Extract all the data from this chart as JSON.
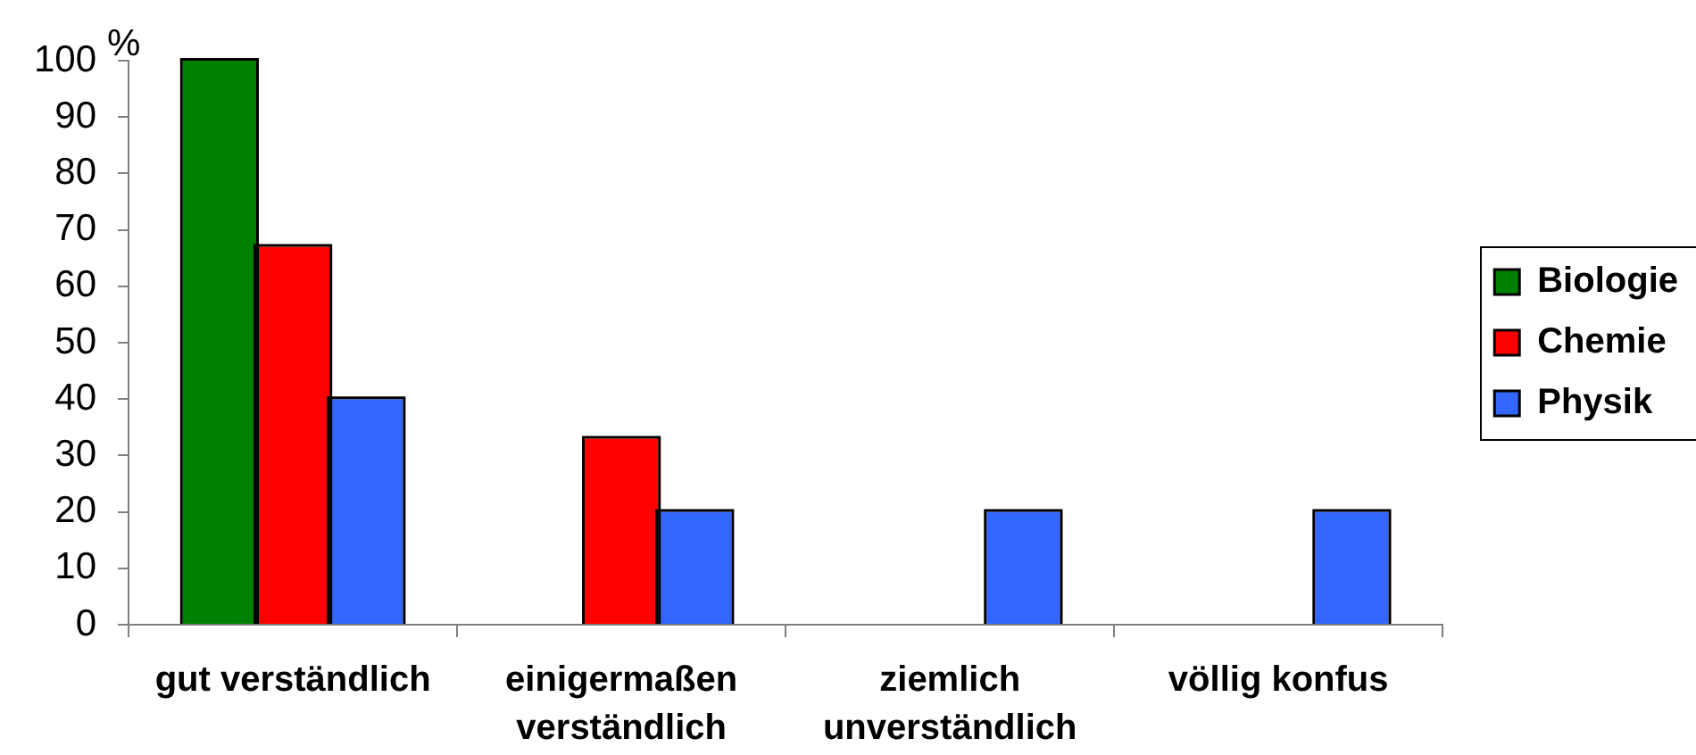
{
  "chart_data": {
    "type": "bar",
    "ylabel": "%",
    "categories": [
      "gut verständlich",
      "einigermaßen verständlich",
      "ziemlich unverständlich",
      "völlig konfus"
    ],
    "series": [
      {
        "name": "Biologie",
        "color": "#008000",
        "values": [
          100,
          0,
          0,
          0
        ]
      },
      {
        "name": "Chemie",
        "color": "#ff0000",
        "values": [
          67,
          33,
          0,
          0
        ]
      },
      {
        "name": "Physik",
        "color": "#3366ff",
        "values": [
          40,
          20,
          20,
          20
        ]
      }
    ],
    "ylim": [
      0,
      100
    ],
    "yticks": [
      0,
      10,
      20,
      30,
      40,
      50,
      60,
      70,
      80,
      90,
      100
    ],
    "grid": false,
    "legend": "right"
  }
}
